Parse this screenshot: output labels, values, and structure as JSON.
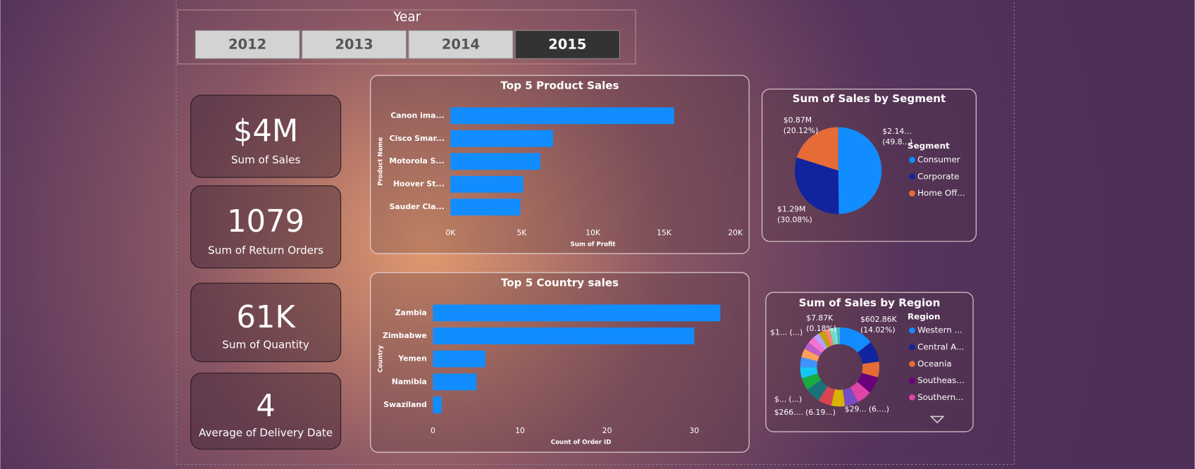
{
  "slicer": {
    "title": "Year",
    "items": [
      "2012",
      "2013",
      "2014",
      "2015"
    ],
    "selected": 3
  },
  "kpis": [
    {
      "value": "$4M",
      "label": "Sum of Sales"
    },
    {
      "value": "1079",
      "label": "Sum of Return Orders"
    },
    {
      "value": "61K",
      "label": "Sum of Quantity"
    },
    {
      "value": "4",
      "label": "Average of Delivery Date"
    }
  ],
  "chart_data": [
    {
      "type": "bar",
      "orientation": "horizontal",
      "title": "Top 5 Product Sales",
      "x_label": "Sum of Profit",
      "y_label": "Product Name",
      "categories": [
        "Canon ima...",
        "Cisco Smar...",
        "Motorola S...",
        "Hoover St...",
        "Sauder Cla..."
      ],
      "values": [
        15700,
        7200,
        6300,
        5100,
        4900
      ],
      "color": "#118dff",
      "xlim": [
        0,
        20000
      ],
      "xticks": [
        {
          "value": 0,
          "label": "0K"
        },
        {
          "value": 5000,
          "label": "5K"
        },
        {
          "value": 10000,
          "label": "10K"
        },
        {
          "value": 15000,
          "label": "15K"
        },
        {
          "value": 20000,
          "label": "20K"
        }
      ],
      "grid": false
    },
    {
      "type": "bar",
      "orientation": "horizontal",
      "title": "Top 5 Country sales",
      "x_label": "Count of Order ID",
      "y_label": "Country",
      "categories": [
        "Zambia",
        "Zimbabwe",
        "Yemen",
        "Namibia",
        "Swaziland"
      ],
      "values": [
        33,
        30,
        6,
        5,
        1
      ],
      "color": "#118dff",
      "xlim": [
        0,
        34
      ],
      "xticks": [
        0,
        10,
        20,
        30
      ],
      "grid": false
    },
    {
      "type": "pie",
      "title": "Sum of Sales by Segment",
      "legend_title": "Segment",
      "categories": [
        "Consumer",
        "Corporate",
        "Home Off..."
      ],
      "values": [
        49.8,
        30.08,
        20.12
      ],
      "amount_labels": [
        "$2.14...",
        "$1.29M",
        "$0.87M"
      ],
      "value_labels": [
        "(49.8...)",
        "(30.08%)",
        "(20.12%)"
      ],
      "colors": [
        "#118dff",
        "#12239e",
        "#e66c37"
      ]
    },
    {
      "type": "donut",
      "title": "Sum of Sales by Region",
      "legend_title": "Region",
      "categories": [
        "Western ...",
        "Central A...",
        "Oceania",
        "Southeas...",
        "Southern...",
        null,
        null,
        null,
        null,
        null,
        null,
        null,
        null,
        null,
        null,
        null,
        null,
        null,
        null,
        null,
        null,
        null
      ],
      "values": [
        14.02,
        8.5,
        6.3,
        6.9,
        6.0,
        5.5,
        5.5,
        5.5,
        6.19,
        5.0,
        4.5,
        4.0,
        3.5,
        3.0,
        3.0,
        2.5,
        2.5,
        2.0,
        1.5,
        1.5,
        1.0,
        0.18
      ],
      "amount_labels": [
        "$602.86K",
        null,
        null,
        null,
        "$29...",
        null,
        null,
        null,
        "$266....",
        "$...",
        null,
        null,
        null,
        null,
        null,
        "$1...",
        null,
        null,
        null,
        null,
        null,
        "$7.87K"
      ],
      "value_labels": [
        "(14.02%)",
        null,
        null,
        null,
        "(6....)",
        null,
        null,
        null,
        "(6.19...)",
        "(...)",
        null,
        null,
        null,
        null,
        null,
        "(...)",
        null,
        null,
        null,
        null,
        null,
        "(0.18%)"
      ],
      "colors": [
        "#118dff",
        "#12239e",
        "#e66c37",
        "#6b007b",
        "#e044a7",
        "#744ec2",
        "#d9b300",
        "#d64550",
        "#197278",
        "#1aab40",
        "#15c6f4",
        "#4092ff",
        "#ffa058",
        "#be5dc9",
        "#f472d0",
        "#b5a1ff",
        "#c4a200",
        "#ff8080",
        "#6fe2a0",
        "#75dcff",
        "#3fc1a0",
        "#a0d1ff"
      ]
    }
  ]
}
